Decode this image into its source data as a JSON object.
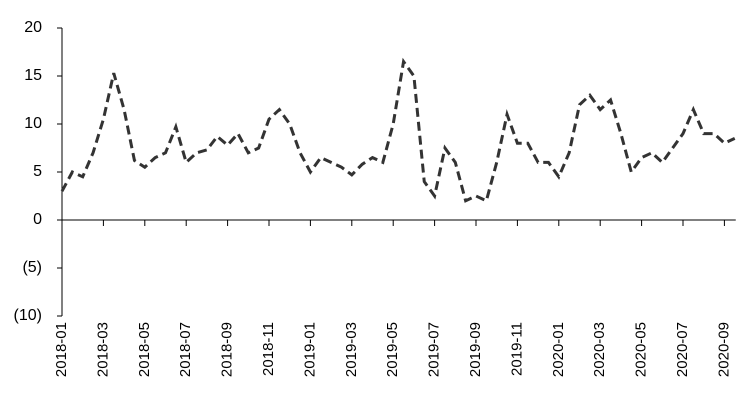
{
  "chart_data": {
    "type": "line",
    "categories": [
      "2018-01",
      null,
      null,
      null,
      "2018-03",
      null,
      null,
      null,
      "2018-05",
      null,
      null,
      null,
      "2018-07",
      null,
      null,
      null,
      "2018-09",
      null,
      null,
      null,
      "2018-11",
      null,
      null,
      null,
      "2019-01",
      null,
      null,
      null,
      "2019-03",
      null,
      null,
      null,
      "2019-05",
      null,
      null,
      null,
      "2019-07",
      null,
      null,
      null,
      "2019-09",
      null,
      null,
      null,
      "2019-11",
      null,
      null,
      null,
      "2020-01",
      null,
      null,
      null,
      "2020-03",
      null,
      null,
      null,
      "2020-05",
      null,
      null,
      null,
      "2020-07",
      null,
      null,
      null,
      "2020-09",
      null
    ],
    "series": [
      {
        "color": "#333333",
        "values": [
          3,
          5,
          4.5,
          7,
          10.5,
          15.3,
          11.5,
          6.2,
          5.5,
          6.5,
          7,
          9.7,
          6,
          7,
          7.3,
          8.7,
          7.8,
          9,
          7,
          7.5,
          10.5,
          11.5,
          10,
          7,
          5,
          6.5,
          6,
          5.5,
          4.7,
          5.8,
          6.5,
          6,
          10,
          16.5,
          15,
          4,
          2.5,
          7.5,
          6,
          2,
          2.5,
          2,
          6,
          11,
          8,
          8,
          6,
          6,
          4.5,
          7,
          12,
          13,
          11.5,
          12.5,
          9,
          5,
          6.5,
          7,
          6,
          7.5,
          9,
          11.5,
          9,
          9,
          8,
          8.5
        ]
      }
    ],
    "ylim": [
      -10,
      20
    ],
    "yticks": [
      20,
      15,
      10,
      5,
      0,
      {
        "value": -5,
        "label": "(5)"
      },
      {
        "value": -10,
        "label": "(10)"
      }
    ],
    "line_style": "dashed"
  }
}
